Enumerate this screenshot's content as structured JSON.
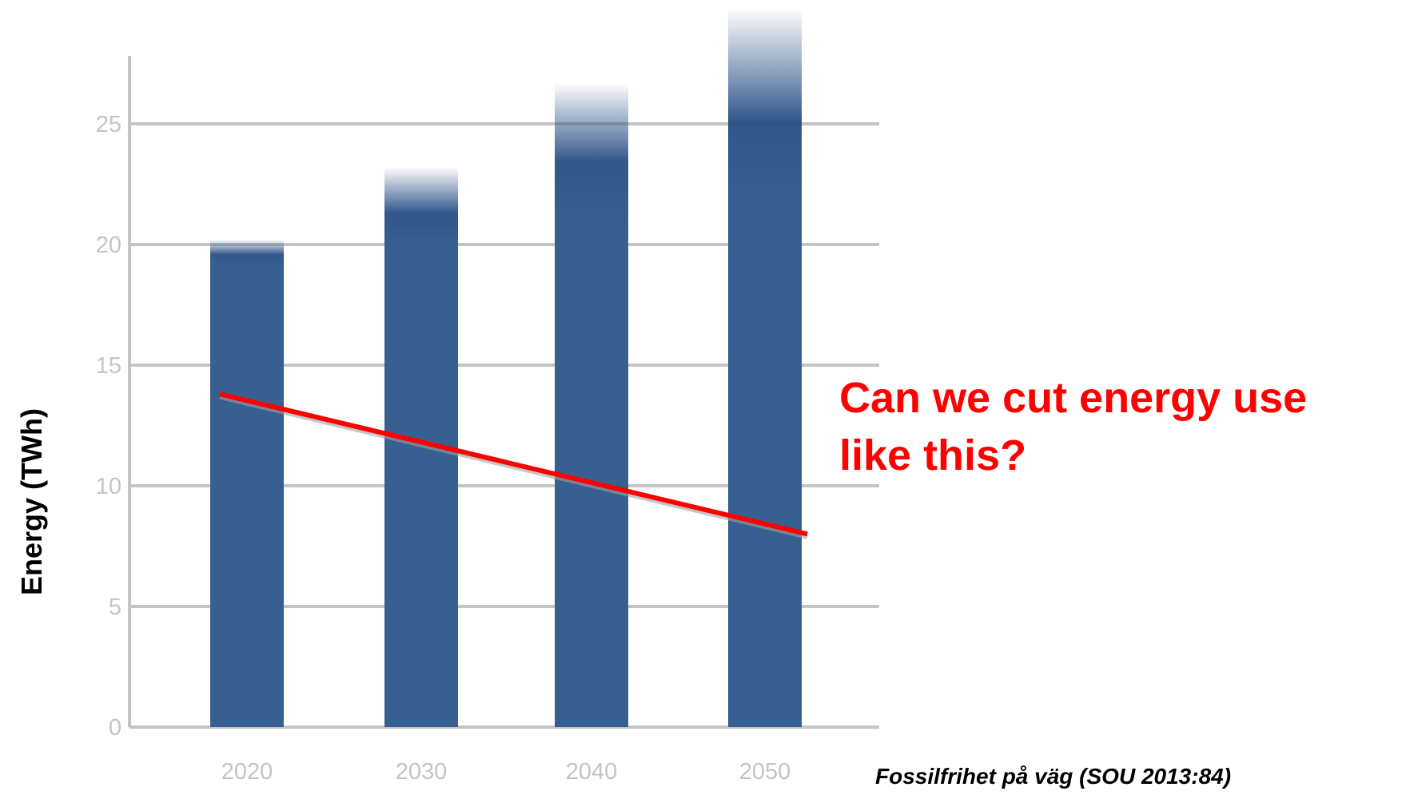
{
  "chart_data": {
    "type": "bar",
    "categories": [
      "2020",
      "2030",
      "2040",
      "2050"
    ],
    "series": [
      {
        "values": [
          20.2,
          23.2,
          26.7,
          30
        ]
      }
    ],
    "uncertainty_from": [
      19.1,
      19.8,
      20.8,
      21.3
    ],
    "trend_line": {
      "start": 13.8,
      "end": 8.0
    },
    "ylabel": "Energy (TWh)",
    "xlabel": "",
    "ylim": [
      0,
      28
    ],
    "yticks": [
      0,
      5,
      10,
      15,
      20,
      25
    ],
    "grid": true,
    "colors": {
      "bar": "#376091",
      "bar_top": "#284f85",
      "trend": "#ff0000",
      "grid": "#c4c4c4",
      "tick": "#c4c4c4"
    }
  },
  "annotation": "Can we cut energy use like this?",
  "source": "Fossilfrihet på väg (SOU 2013:84)"
}
